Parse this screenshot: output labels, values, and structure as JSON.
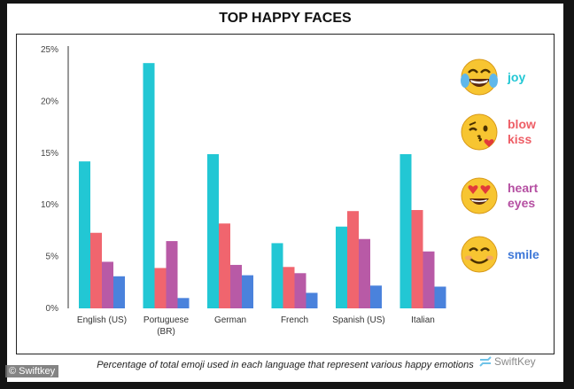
{
  "title": "TOP HAPPY FACES",
  "caption": "Percentage of total emoji used in each language that represent various happy emotions",
  "watermark": "© Swiftkey",
  "brand": "SwiftKey",
  "legend": [
    {
      "label_lines": [
        "joy"
      ],
      "icon": "face-with-tears-of-joy-icon",
      "color": "#22c7d4"
    },
    {
      "label_lines": [
        "blow",
        "kiss"
      ],
      "icon": "face-blowing-kiss-icon",
      "color": "#ee5e66"
    },
    {
      "label_lines": [
        "heart",
        "eyes"
      ],
      "icon": "heart-eyes-face-icon",
      "color": "#b54fa2"
    },
    {
      "label_lines": [
        "smile"
      ],
      "icon": "smiling-face-icon",
      "color": "#3e78d8"
    }
  ],
  "chart_data": {
    "type": "bar",
    "title": "TOP HAPPY FACES",
    "categories": [
      [
        "English (US)"
      ],
      [
        "Portuguese",
        "(BR)"
      ],
      [
        "German"
      ],
      [
        "French"
      ],
      [
        "Spanish (US)"
      ],
      [
        "Italian"
      ]
    ],
    "series": [
      {
        "name": "joy",
        "color": "#22c7d4",
        "values": [
          14.2,
          23.7,
          14.9,
          6.3,
          7.9,
          14.9
        ]
      },
      {
        "name": "blow kiss",
        "color": "#f0656e",
        "values": [
          7.3,
          3.9,
          8.2,
          4.0,
          9.4,
          9.5
        ]
      },
      {
        "name": "heart eyes",
        "color": "#b85aa6",
        "values": [
          4.5,
          6.5,
          4.2,
          3.4,
          6.7,
          5.5
        ]
      },
      {
        "name": "smile",
        "color": "#4a82dc",
        "values": [
          3.1,
          1.0,
          3.2,
          1.5,
          2.2,
          2.1
        ]
      }
    ],
    "yticks": [
      "0%",
      "5%",
      "10%",
      "15%",
      "20%",
      "25%"
    ],
    "ylim": [
      0,
      25
    ],
    "xlabel": "",
    "ylabel": "",
    "grid": false,
    "legend_position": "right"
  }
}
